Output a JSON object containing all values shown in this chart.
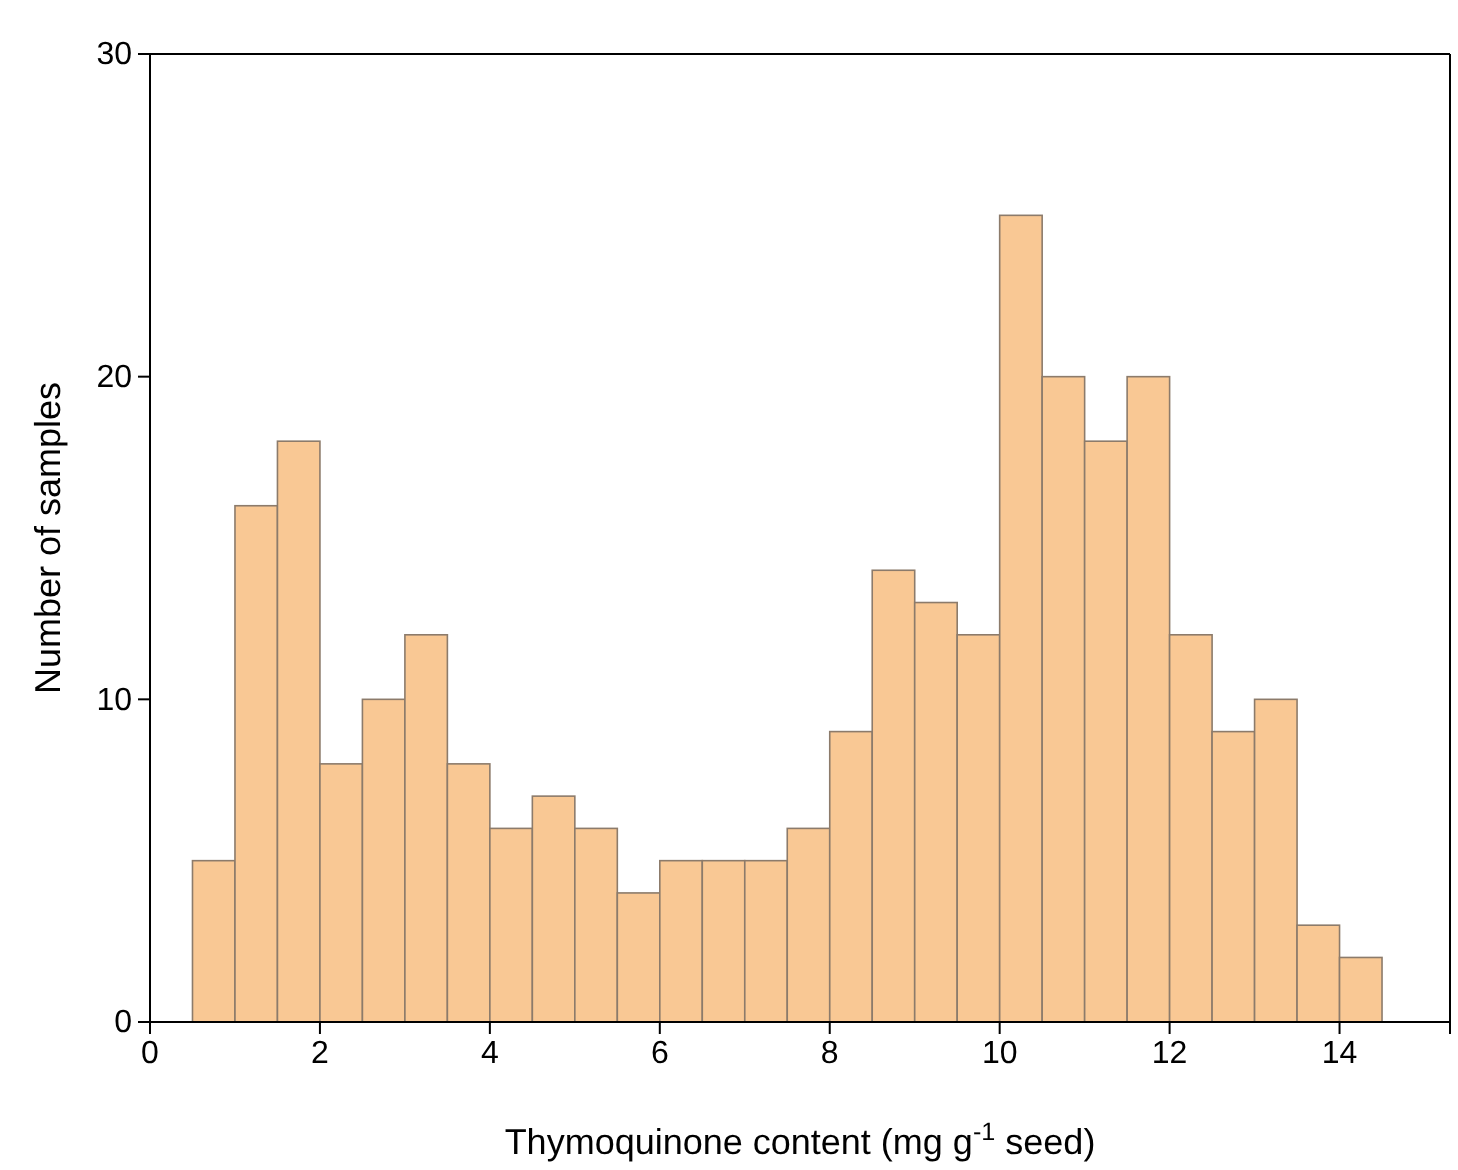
{
  "chart_data": {
    "type": "histogram",
    "xlabel": "Thymoquinone content (mg g$^{-1}$ seed)",
    "ylabel": "Number of samples",
    "bins": [
      0.5,
      1,
      1.5,
      2,
      2.5,
      3,
      3.5,
      4,
      4.5,
      5,
      5.5,
      6,
      6.5,
      7,
      7.5,
      8,
      8.5,
      9,
      9.5,
      10,
      10.5,
      11,
      11.5,
      12,
      12.5,
      13,
      13.5,
      14,
      14.5
    ],
    "values": [
      5,
      16,
      18,
      8,
      10,
      12,
      8,
      6,
      7,
      6,
      4,
      5,
      5,
      5,
      6,
      9,
      14,
      13,
      12,
      25,
      20,
      18,
      20,
      12,
      9,
      10,
      3,
      2
    ],
    "color": "#f9c894",
    "xlim": [
      0,
      15.3
    ],
    "xticks": [
      0,
      2,
      4,
      6,
      8,
      10,
      12,
      14
    ],
    "ylim": [
      0,
      30
    ],
    "yticks": [
      0,
      10,
      20,
      30
    ],
    "grid": false
  }
}
